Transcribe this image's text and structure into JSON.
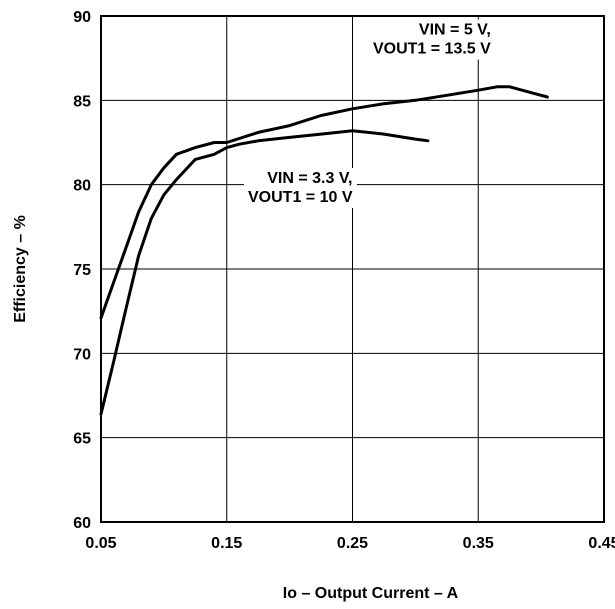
{
  "chart_data": {
    "type": "line",
    "title": "",
    "xlabel": "Io – Output Current – A",
    "ylabel": "Efficiency – %",
    "xlim": [
      0.05,
      0.45
    ],
    "ylim": [
      60,
      90
    ],
    "grid": true,
    "x_ticks": [
      0.05,
      0.15,
      0.25,
      0.35,
      0.45
    ],
    "x_tick_labels": [
      "0.05",
      "0.15",
      "0.25",
      "0.35",
      "0.45"
    ],
    "y_ticks": [
      60,
      65,
      70,
      75,
      80,
      85,
      90
    ],
    "y_tick_labels": [
      "60",
      "65",
      "70",
      "75",
      "80",
      "85",
      "90"
    ],
    "series": [
      {
        "x": [
          0.05,
          0.06,
          0.07,
          0.08,
          0.09,
          0.1,
          0.11,
          0.125,
          0.14,
          0.15,
          0.175,
          0.2,
          0.225,
          0.25,
          0.275,
          0.3,
          0.325,
          0.35,
          0.365,
          0.375,
          0.39,
          0.405
        ],
        "y": [
          72.1,
          74.2,
          76.3,
          78.4,
          80.0,
          81.0,
          81.8,
          82.2,
          82.5,
          82.5,
          83.1,
          83.5,
          84.1,
          84.5,
          84.8,
          85.0,
          85.3,
          85.6,
          85.8,
          85.8,
          85.5,
          85.2
        ]
      },
      {
        "x": [
          0.05,
          0.06,
          0.07,
          0.08,
          0.09,
          0.1,
          0.11,
          0.125,
          0.14,
          0.15,
          0.16,
          0.175,
          0.2,
          0.225,
          0.25,
          0.275,
          0.3,
          0.31
        ],
        "y": [
          66.4,
          69.5,
          72.7,
          75.8,
          78.0,
          79.4,
          80.3,
          81.5,
          81.8,
          82.2,
          82.4,
          82.6,
          82.8,
          83.0,
          83.2,
          83.0,
          82.7,
          82.6
        ]
      }
    ],
    "annotations": [
      {
        "lines": [
          "VIN = 5 V,",
          "VOUT1 = 13.5 V"
        ],
        "x": 0.36,
        "y": 88.9
      },
      {
        "lines": [
          "VIN = 3.3 V,",
          "VOUT1 = 10 V"
        ],
        "x": 0.25,
        "y": 80.1
      }
    ]
  }
}
